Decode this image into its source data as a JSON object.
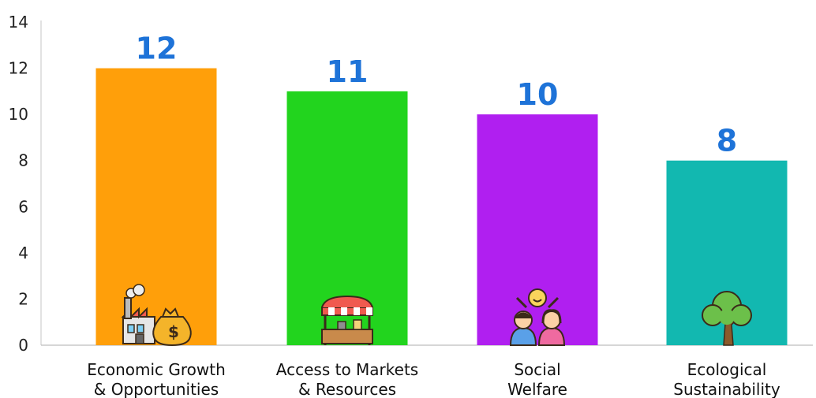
{
  "chart_data": {
    "type": "bar",
    "categories": [
      "Economic Growth\n& Opportunities",
      "Access to Markets\n& Resources",
      "Social\nWelfare",
      "Ecological\nSustainability"
    ],
    "values": [
      12,
      11,
      10,
      8
    ],
    "data_labels": [
      "12",
      "11",
      "10",
      "8"
    ],
    "colors": [
      "#ff9f0a",
      "#22d41e",
      "#b01ff0",
      "#12b8b0"
    ],
    "icons": [
      "factory-money-icon",
      "market-stall-icon",
      "people-group-icon",
      "tree-icon"
    ],
    "yticks": [
      "0",
      "2",
      "4",
      "6",
      "8",
      "10",
      "12",
      "14"
    ],
    "ylim": [
      0,
      14
    ],
    "grid": false,
    "title": "",
    "xlabel": "",
    "ylabel": ""
  }
}
